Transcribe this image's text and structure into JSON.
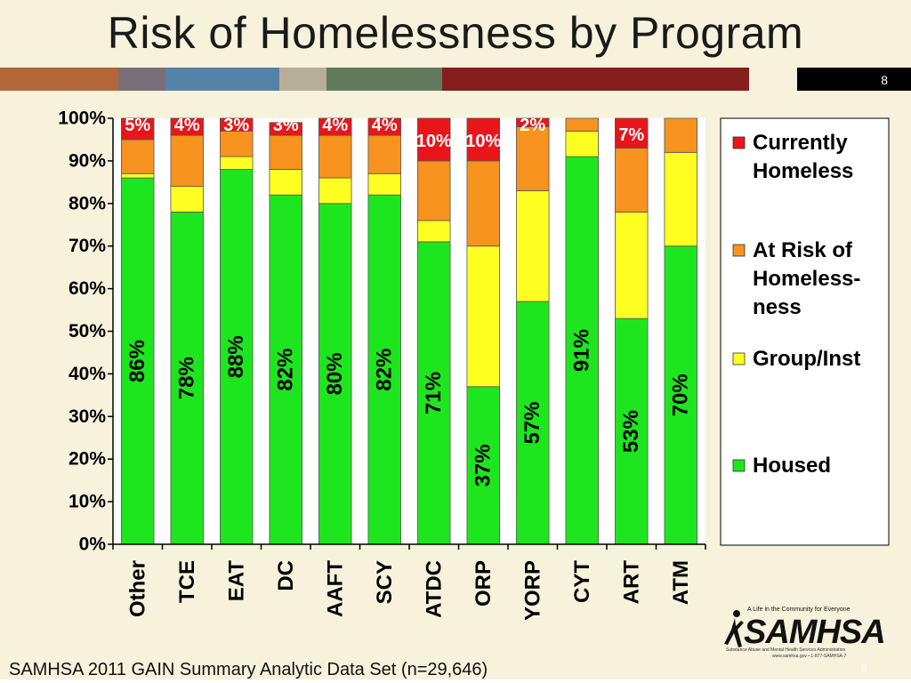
{
  "title": "Risk of Homelessness by Program",
  "page_number": "8",
  "footer_page_number": "8",
  "source": "SAMHSA 2011 GAIN Summary Analytic Data Set (n=29,646)",
  "logo": {
    "tagline": "A Life in the Community for Everyone",
    "name": "SAMHSA",
    "subtitle": "Substance Abuse and Mental Health Services Administration",
    "contact": "www.samhsa.gov • 1-877-SAMHSA-7"
  },
  "colors": {
    "background": "#f6f2dc",
    "currently_homeless": "#e8161b",
    "at_risk": "#f7931e",
    "group_inst": "#ffff22",
    "housed": "#1ee61e",
    "band": [
      "#b3663a",
      "#7a6e78",
      "#5582a8",
      "#b9ad97",
      "#637a5c",
      "#861d1d",
      "#f6f2dc",
      "#000000"
    ]
  },
  "chart_data": {
    "type": "bar",
    "stacked": true,
    "categories": [
      "Other",
      "TCE",
      "EAT",
      "DC",
      "AAFT",
      "SCY",
      "ATDC",
      "ORP",
      "YORP",
      "CYT",
      "ART",
      "ATM"
    ],
    "series": [
      {
        "name": "Housed",
        "values": [
          86,
          78,
          88,
          82,
          80,
          82,
          71,
          37,
          57,
          91,
          53,
          70
        ],
        "labels": [
          "86%",
          "78%",
          "88%",
          "82%",
          "80%",
          "82%",
          "71%",
          "37%",
          "57%",
          "91%",
          "53%",
          "70%"
        ]
      },
      {
        "name": "Group/Inst",
        "values": [
          1,
          6,
          3,
          6,
          6,
          5,
          5,
          33,
          26,
          6,
          25,
          22
        ]
      },
      {
        "name": "At Risk of Homeless-ness",
        "values": [
          8,
          12,
          6,
          8,
          10,
          9,
          14,
          20,
          15,
          3,
          15,
          8
        ]
      },
      {
        "name": "Currently Homeless",
        "values": [
          5,
          4,
          3,
          3,
          4,
          4,
          10,
          10,
          2,
          0,
          7,
          0
        ],
        "labels": [
          "5%",
          "4%",
          "3%",
          "3%",
          "4%",
          "4%",
          "10%",
          "10%",
          "2%",
          "",
          "7%",
          ""
        ]
      }
    ],
    "legend_entries": [
      "Currently Homeless",
      "At Risk of Homeless-ness",
      "Group/Inst",
      "Housed"
    ],
    "legend_position": "right",
    "ylim": [
      0,
      100
    ],
    "yticks": [
      "0%",
      "10%",
      "20%",
      "30%",
      "40%",
      "50%",
      "60%",
      "70%",
      "80%",
      "90%",
      "100%"
    ],
    "grid": false
  }
}
